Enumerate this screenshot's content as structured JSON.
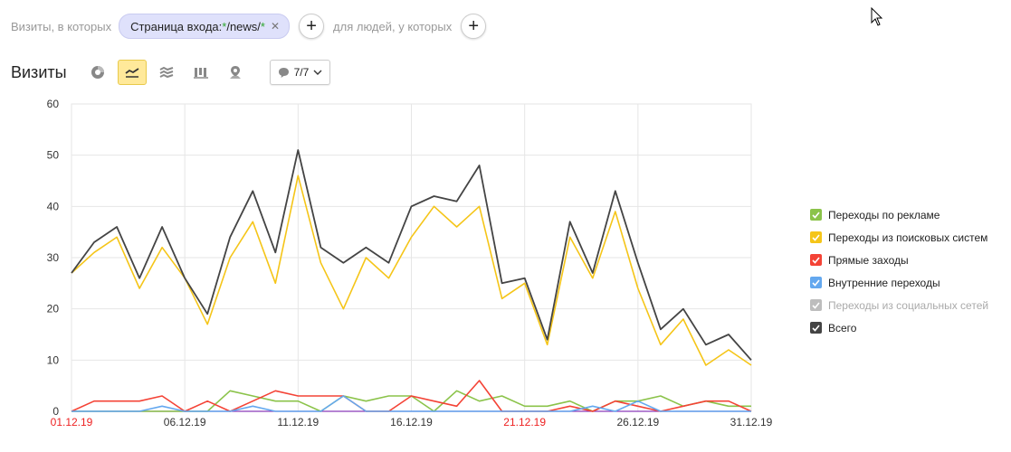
{
  "filters": {
    "prefix": "Визиты, в которых",
    "chip": {
      "label": "Страница входа: ",
      "value_pre": "",
      "star1": "*",
      "middle": "/news/",
      "star2": "*"
    },
    "middle": "для людей, у которых"
  },
  "header": {
    "title": "Визиты",
    "metrics_label": "7/7"
  },
  "icons": [
    "pie-icon",
    "line-chart-icon",
    "area-chart-icon",
    "bar-chart-icon",
    "map-icon"
  ],
  "legend": [
    {
      "name": "Переходы по рекламе",
      "color": "#8bc34a",
      "enabled": true
    },
    {
      "name": "Переходы из поисковых систем",
      "color": "#f5c518",
      "enabled": true
    },
    {
      "name": "Прямые заходы",
      "color": "#f44336",
      "enabled": true
    },
    {
      "name": "Внутренние переходы",
      "color": "#64a8ef",
      "enabled": true
    },
    {
      "name": "Переходы из социальных сетей",
      "color": "#bdbdbd",
      "enabled": false
    },
    {
      "name": "Всего",
      "color": "#444444",
      "enabled": true
    }
  ],
  "chart_data": {
    "type": "line",
    "x": [
      "01.12.19",
      "02.12.19",
      "03.12.19",
      "04.12.19",
      "05.12.19",
      "06.12.19",
      "07.12.19",
      "08.12.19",
      "09.12.19",
      "10.12.19",
      "11.12.19",
      "12.12.19",
      "13.12.19",
      "14.12.19",
      "15.12.19",
      "16.12.19",
      "17.12.19",
      "18.12.19",
      "19.12.19",
      "20.12.19",
      "21.12.19",
      "22.12.19",
      "23.12.19",
      "24.12.19",
      "25.12.19",
      "26.12.19",
      "27.12.19",
      "28.12.19",
      "29.12.19",
      "30.12.19",
      "31.12.19"
    ],
    "x_tick_labels": [
      {
        "label": "01.12.19",
        "weekend": true
      },
      {
        "label": "06.12.19",
        "weekend": false
      },
      {
        "label": "11.12.19",
        "weekend": false
      },
      {
        "label": "16.12.19",
        "weekend": false
      },
      {
        "label": "21.12.19",
        "weekend": true
      },
      {
        "label": "26.12.19",
        "weekend": false
      },
      {
        "label": "31.12.19",
        "weekend": false
      }
    ],
    "ylim": [
      0,
      60
    ],
    "y_ticks": [
      "0",
      "10",
      "20",
      "30",
      "40",
      "50",
      "60"
    ],
    "grid": true,
    "series": [
      {
        "name": "Переходы по рекламе",
        "color": "#8bc34a",
        "values": [
          0,
          0,
          0,
          0,
          0,
          0,
          0,
          4,
          3,
          2,
          2,
          0,
          3,
          2,
          3,
          3,
          0,
          4,
          2,
          3,
          1,
          1,
          2,
          0,
          2,
          2,
          3,
          1,
          2,
          1,
          1
        ]
      },
      {
        "name": "Переходы из поисковых систем",
        "color": "#f5c518",
        "values": [
          27,
          31,
          34,
          24,
          32,
          26,
          17,
          30,
          37,
          25,
          46,
          29,
          20,
          30,
          26,
          34,
          40,
          36,
          40,
          22,
          25,
          13,
          34,
          26,
          39,
          24,
          13,
          18,
          9,
          12,
          9
        ]
      },
      {
        "name": "Прямые заходы",
        "color": "#f44336",
        "values": [
          0,
          2,
          2,
          2,
          3,
          0,
          2,
          0,
          2,
          4,
          3,
          3,
          3,
          0,
          0,
          3,
          2,
          1,
          6,
          0,
          0,
          0,
          1,
          0,
          2,
          1,
          0,
          1,
          2,
          2,
          0
        ]
      },
      {
        "name": "Внутренние переходы",
        "color": "#64a8ef",
        "values": [
          0,
          0,
          0,
          0,
          1,
          0,
          0,
          0,
          1,
          0,
          0,
          0,
          3,
          0,
          0,
          0,
          0,
          0,
          0,
          0,
          0,
          0,
          0,
          1,
          0,
          2,
          0,
          0,
          0,
          0,
          0
        ]
      },
      {
        "name": "Всего",
        "color": "#444444",
        "values": [
          27,
          33,
          36,
          26,
          36,
          26,
          19,
          34,
          43,
          31,
          51,
          32,
          29,
          32,
          29,
          40,
          42,
          41,
          48,
          25,
          26,
          14,
          37,
          27,
          43,
          29,
          16,
          20,
          13,
          15,
          10
        ]
      }
    ]
  }
}
